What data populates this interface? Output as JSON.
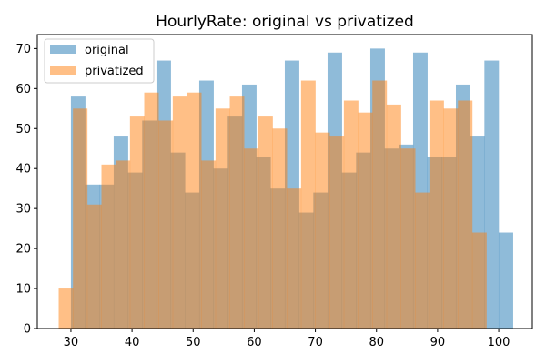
{
  "chart_data": {
    "type": "bar",
    "title": "HourlyRate: original vs privatized",
    "xlabel": "",
    "ylabel": "",
    "xlim": [
      24.5,
      105.5
    ],
    "ylim": [
      0,
      73.5
    ],
    "xticks": [
      30,
      40,
      50,
      60,
      70,
      80,
      90,
      100
    ],
    "yticks": [
      0,
      10,
      20,
      30,
      40,
      50,
      60,
      70
    ],
    "legend_position": "top-left",
    "grid": false,
    "series": [
      {
        "name": "original",
        "color": "#1f77b4",
        "opacity": 0.5,
        "bin_start": 30,
        "bin_width": 2.333,
        "values": [
          58,
          36,
          36,
          48,
          39,
          52,
          67,
          44,
          34,
          62,
          40,
          53,
          61,
          43,
          35,
          67,
          29,
          34,
          69,
          39,
          44,
          70,
          45,
          46,
          69,
          43,
          43,
          61,
          48,
          67,
          24
        ]
      },
      {
        "name": "privatized",
        "color": "#ff7f0e",
        "opacity": 0.5,
        "bin_start": 28,
        "bin_width": 2.333,
        "values": [
          10,
          55,
          31,
          41,
          42,
          53,
          59,
          52,
          58,
          59,
          42,
          55,
          58,
          45,
          53,
          50,
          35,
          62,
          49,
          48,
          57,
          54,
          62,
          56,
          45,
          34,
          57,
          55,
          57,
          24
        ]
      }
    ]
  }
}
